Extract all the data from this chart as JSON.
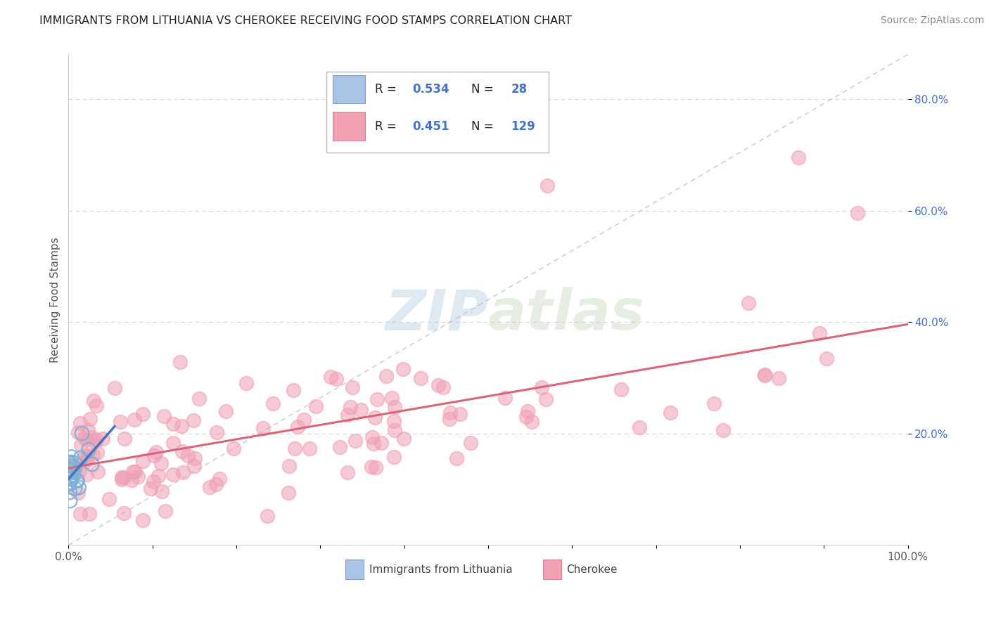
{
  "title": "IMMIGRANTS FROM LITHUANIA VS CHEROKEE RECEIVING FOOD STAMPS CORRELATION CHART",
  "source": "Source: ZipAtlas.com",
  "ylabel": "Receiving Food Stamps",
  "ytick_vals": [
    0.2,
    0.4,
    0.6,
    0.8
  ],
  "ytick_labels": [
    "20.0%",
    "40.0%",
    "60.0%",
    "80.0%"
  ],
  "xrange": [
    0.0,
    1.0
  ],
  "yrange": [
    0.0,
    0.88
  ],
  "legend_R_blue": "0.534",
  "legend_N_blue": "28",
  "legend_R_pink": "0.451",
  "legend_N_pink": "129",
  "blue_line_color": "#4472c4",
  "pink_line_color": "#d9657a",
  "scatter_blue_color": "#7fafd6",
  "scatter_pink_color": "#f0a0b4",
  "dashed_line_color": "#b0c4d8",
  "watermark": "ZIPatlas",
  "background_color": "#ffffff",
  "grid_color": "#cccccc",
  "title_fontsize": 11.5,
  "ytick_color": "#4472c4",
  "source_color": "#888888",
  "ylabel_color": "#555555"
}
